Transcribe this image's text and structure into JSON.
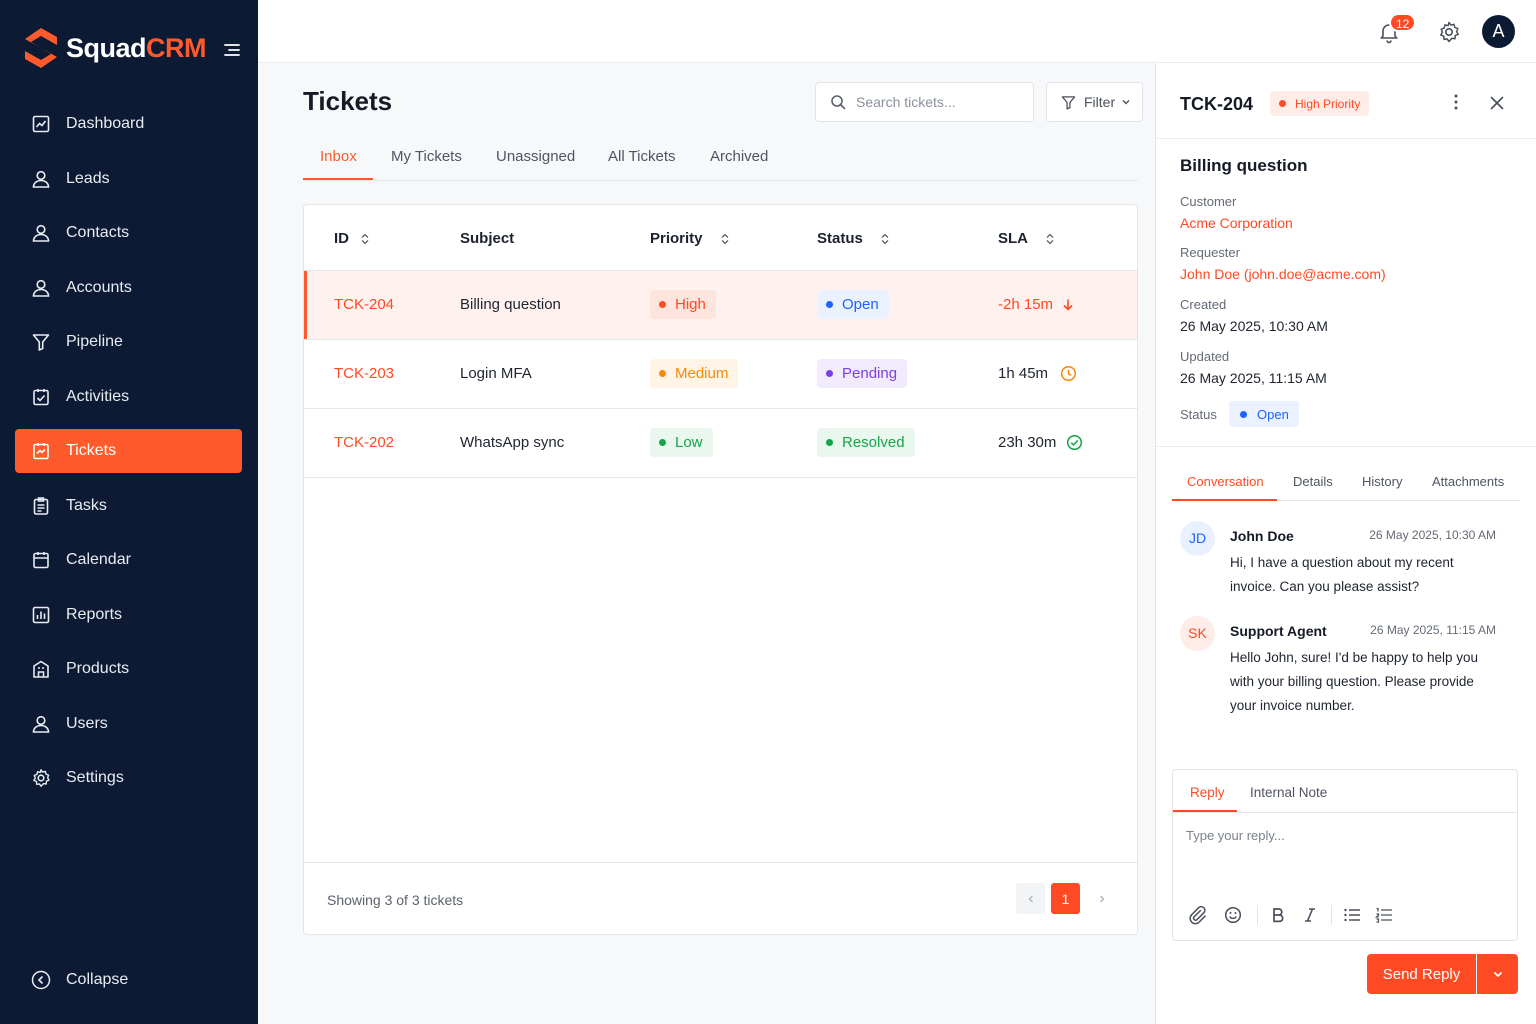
{
  "brand": {
    "name_part1": "Squad",
    "name_part2": "CRM",
    "accent": "#ff5a2c"
  },
  "sidebar": {
    "items": [
      {
        "label": "Dashboard",
        "icon": "chart-icon"
      },
      {
        "label": "Leads",
        "icon": "user-icon"
      },
      {
        "label": "Contacts",
        "icon": "user-icon"
      },
      {
        "label": "Accounts",
        "icon": "user-icon"
      },
      {
        "label": "Pipeline",
        "icon": "funnel-icon"
      },
      {
        "label": "Activities",
        "icon": "calendar-check-icon"
      },
      {
        "label": "Tickets",
        "icon": "ticket-icon",
        "active": true
      },
      {
        "label": "Tasks",
        "icon": "clipboard-icon"
      },
      {
        "label": "Calendar",
        "icon": "calendar-icon"
      },
      {
        "label": "Reports",
        "icon": "bar-chart-icon"
      },
      {
        "label": "Products",
        "icon": "building-icon"
      },
      {
        "label": "Users",
        "icon": "user-icon"
      },
      {
        "label": "Settings",
        "icon": "gear-icon"
      }
    ],
    "collapse_label": "Collapse"
  },
  "topbar": {
    "notification_count": "12",
    "avatar_initial": "A"
  },
  "main": {
    "title": "Tickets",
    "search_placeholder": "Search tickets...",
    "filter_label": "Filter",
    "tabs": [
      "Inbox",
      "My Tickets",
      "Unassigned",
      "All Tickets",
      "Archived"
    ],
    "active_tab": "Inbox"
  },
  "table": {
    "columns": [
      "ID",
      "Subject",
      "Priority",
      "Status",
      "SLA"
    ],
    "rows": [
      {
        "id": "TCK-204",
        "subject": "Billing question",
        "priority": "High",
        "status": "Open",
        "sla": "-2h 15m"
      },
      {
        "id": "TCK-203",
        "subject": "Login MFA",
        "priority": "Medium",
        "status": "Pending",
        "sla": "1h 45m"
      },
      {
        "id": "TCK-202",
        "subject": "WhatsApp sync",
        "priority": "Low",
        "status": "Resolved",
        "sla": "23h 30m"
      }
    ],
    "showing": "Showing 3 of 3 tickets",
    "current_page": "1"
  },
  "detail": {
    "id": "TCK-204",
    "priority_badge": "High Priority",
    "title": "Billing question",
    "customer_label": "Customer",
    "customer": "Acme Corporation",
    "requester_label": "Requester",
    "requester": "John Doe (john.doe@acme.com)",
    "created_label": "Created",
    "created": "26 May 2025, 10:30 AM",
    "updated_label": "Updated",
    "updated": "26 May 2025, 11:15 AM",
    "status_label": "Status",
    "status": "Open",
    "tabs": [
      "Conversation",
      "Details",
      "History",
      "Attachments"
    ],
    "messages": [
      {
        "initials": "JD",
        "name": "John Doe",
        "time": "26 May 2025, 10:30 AM",
        "text": "Hi, I have a question about my recent invoice. Can you please assist?"
      },
      {
        "initials": "SK",
        "name": "Support Agent",
        "time": "26 May 2025, 11:15 AM",
        "text": "Hello John, sure! I'd be happy to help you with your billing question. Please provide your invoice number."
      }
    ],
    "reply_tabs": [
      "Reply",
      "Internal Note"
    ],
    "reply_placeholder": "Type your reply...",
    "send_label": "Send Reply"
  },
  "colors": {
    "high": "#ff4a23",
    "high_bg": "#fdece7",
    "medium": "#f5890b",
    "medium_bg": "#fff4e5",
    "low": "#16a34a",
    "low_bg": "#eaf7ee",
    "open": "#1b64ff",
    "open_bg": "#ebf2ff",
    "pending": "#7b3fe4",
    "pending_bg": "#f1ebfd",
    "resolved": "#16a34a",
    "resolved_bg": "#eaf7ee"
  }
}
